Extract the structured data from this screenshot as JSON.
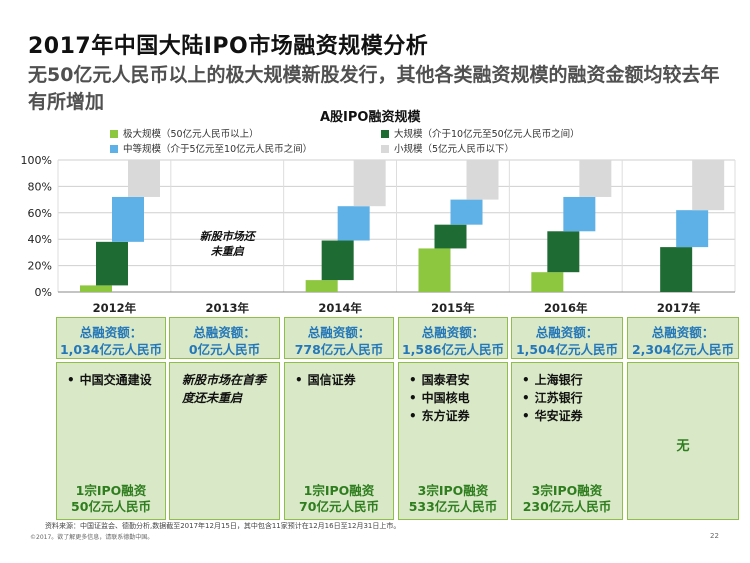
{
  "title": "2017年中国大陆IPO市场融资规模分析",
  "subtitle": "无50亿元人民币以上的极大规模新股发行，其他各类融资规模的融资金额均较去年有所增加",
  "chart_data": {
    "type": "bar",
    "title": "A股IPO融资规模",
    "categories": [
      "2012年",
      "2013年",
      "2014年",
      "2015年",
      "2016年",
      "2017年"
    ],
    "ylim": [
      0,
      100
    ],
    "yticks": [
      "0%",
      "20%",
      "40%",
      "60%",
      "80%",
      "100%"
    ],
    "grid": true,
    "legend_position": "top",
    "series": [
      {
        "name": "极大规模（50亿元人民币以上）",
        "color": "#8dc63f",
        "values": [
          5,
          0,
          9,
          33,
          15,
          0
        ]
      },
      {
        "name": "大规模（介于10亿元至50亿元人民币之间）",
        "color": "#1e6b33",
        "values": [
          33,
          0,
          30,
          18,
          31,
          34
        ]
      },
      {
        "name": "中等规模（介于5亿元至10亿元人民币之间）",
        "color": "#5eb1e6",
        "values": [
          34,
          0,
          26,
          19,
          26,
          28
        ]
      },
      {
        "name": "小规模（5亿元人民币以下）",
        "color": "#d9d9d9",
        "values": [
          28,
          0,
          35,
          30,
          28,
          38
        ]
      }
    ],
    "annotation": "新股市场还未重启"
  },
  "panels": [
    {
      "total_label": "总融资额：",
      "total_value": "1,034亿元人民币",
      "items": [
        "中国交通建设"
      ],
      "note": "",
      "footer1": "1宗IPO融资",
      "footer2": "50亿元人民币"
    },
    {
      "total_label": "总融资额：",
      "total_value": "0亿元人民币",
      "items": [],
      "note": "新股市场在首季度还未重启",
      "footer1": "",
      "footer2": ""
    },
    {
      "total_label": "总融资额：",
      "total_value": "778亿元人民币",
      "items": [
        "国信证券"
      ],
      "note": "",
      "footer1": "1宗IPO融资",
      "footer2": "70亿元人民币"
    },
    {
      "total_label": "总融资额：",
      "total_value": "1,586亿元人民币",
      "items": [
        "国泰君安",
        "中国核电",
        "东方证券"
      ],
      "note": "",
      "footer1": "3宗IPO融资",
      "footer2": "533亿元人民币"
    },
    {
      "total_label": "总融资额：",
      "total_value": "1,504亿元人民币",
      "items": [
        "上海银行",
        "江苏银行",
        "华安证券"
      ],
      "note": "",
      "footer1": "3宗IPO融资",
      "footer2": "230亿元人民币"
    },
    {
      "total_label": "总融资额：",
      "total_value": "2,304亿元人民币",
      "items": [],
      "note": "",
      "none_text": "无",
      "footer1": "",
      "footer2": ""
    }
  ],
  "source": "资料来源：中国证监会、德勤分析,数据截至2017年12月15日，其中包含11家预计在12月16日至12月31日上市。",
  "copyright": "©2017。欲了解更多信息，请联系德勤中国。",
  "page_number": "22"
}
